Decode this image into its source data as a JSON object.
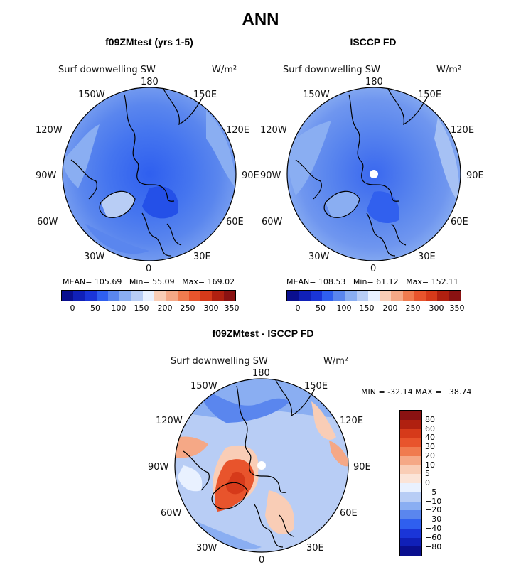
{
  "page_title": "ANN",
  "variable": "Surf downwelling SW",
  "units": "W/m²",
  "colors": {
    "blue_dark": "#0a0f8f",
    "blue_mid": "#2f5fef",
    "blue_light": "#8aaef2",
    "white_mid": "#e9f1ff",
    "orange_light": "#f9cdb6",
    "orange_mid": "#f07b4f",
    "red_dark": "#8a1212"
  },
  "panels": [
    {
      "title": "f09ZMtest (yrs 1-5)",
      "mean_label": "MEAN=",
      "mean": "105.69",
      "min_label": "Min=",
      "min": "55.09",
      "max_label": "Max=",
      "max": "169.02",
      "colorbar_ticks": [
        "0",
        "50",
        "100",
        "150",
        "200",
        "250",
        "300",
        "350"
      ]
    },
    {
      "title": "ISCCP FD",
      "mean_label": "MEAN=",
      "mean": "108.53",
      "min_label": "Min=",
      "min": "61.12",
      "max_label": "Max=",
      "max": "152.11",
      "colorbar_ticks": [
        "0",
        "50",
        "100",
        "150",
        "200",
        "250",
        "300",
        "350"
      ]
    },
    {
      "title": "f09ZMtest - ISCCP FD",
      "min_label": "MIN =",
      "min": "-32.14",
      "max_label": "MAX =",
      "max": "38.74",
      "colorbar_ticks": [
        "80",
        "60",
        "40",
        "30",
        "20",
        "10",
        "5",
        "0",
        "−5",
        "−10",
        "−20",
        "−30",
        "−40",
        "−60",
        "−80"
      ]
    }
  ],
  "longitude_labels": {
    "lon180": "180",
    "lon150e": "150E",
    "lon120e": "120E",
    "lon90e": "90E",
    "lon60e": "60E",
    "lon30e": "30E",
    "lon0": "0",
    "lon30w": "30W",
    "lon60w": "60W",
    "lon90w": "90W",
    "lon120w": "120W",
    "lon150w": "150W"
  }
}
